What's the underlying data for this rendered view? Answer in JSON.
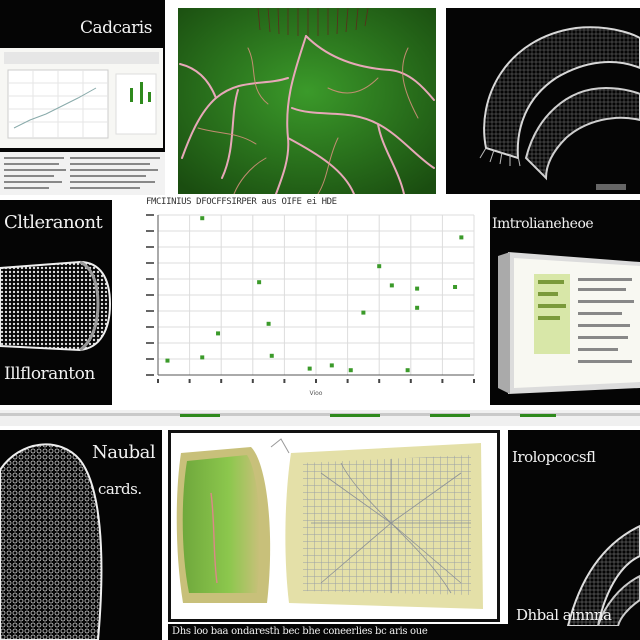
{
  "panels": {
    "top_left": {
      "title": "Cadcaris"
    },
    "mid_left": {
      "title": "Cltleranont",
      "caption": "Illfloranton"
    },
    "mid_chart": {
      "title": "FMCIINIUS DFOCFFSIRPER aus OIFE ei HDE"
    },
    "mid_right": {
      "title": "Imtrolianeheoe"
    },
    "bottom_left": {
      "title": "Naubal",
      "subtitle": "cards."
    },
    "bottom_right": {
      "title": "Irolopcocsfl",
      "caption": "Dhbal ainnna"
    },
    "bottom_strip": {
      "text": "Dhs loo baa ondaresth bec bhe coneerlies bc aris oue"
    }
  },
  "colors": {
    "accent_green": "#2f8a1d",
    "leaf_green": "#3b9a2a",
    "vein_pink": "#e7a8b8",
    "dark_bg": "#050505"
  },
  "icons": [
    "leaf-vein-image",
    "nematode-mesh-image",
    "tissue-section-image",
    "lattice-sheet-image"
  ],
  "chart_data": {
    "type": "scatter",
    "title": "FMCIINIUS DFOCFFSIRPER aus OIFE ei HDE",
    "xlabel": "Vioo",
    "ylabel": "",
    "xlim": [
      0,
      10
    ],
    "ylim": [
      0,
      10
    ],
    "grid": true,
    "points": [
      {
        "x": 0.3,
        "y": 0.9
      },
      {
        "x": 1.4,
        "y": 1.1
      },
      {
        "x": 3.6,
        "y": 1.2
      },
      {
        "x": 1.9,
        "y": 2.6
      },
      {
        "x": 3.5,
        "y": 3.2
      },
      {
        "x": 3.2,
        "y": 5.8
      },
      {
        "x": 6.5,
        "y": 3.9
      },
      {
        "x": 8.2,
        "y": 4.2
      },
      {
        "x": 8.2,
        "y": 5.4
      },
      {
        "x": 9.4,
        "y": 5.5
      },
      {
        "x": 7.0,
        "y": 6.8
      },
      {
        "x": 7.4,
        "y": 5.6
      },
      {
        "x": 9.6,
        "y": 8.6
      },
      {
        "x": 1.4,
        "y": 9.8
      },
      {
        "x": 5.5,
        "y": 0.6
      },
      {
        "x": 7.9,
        "y": 0.3
      },
      {
        "x": 4.8,
        "y": 0.4
      },
      {
        "x": 6.1,
        "y": 0.3
      }
    ]
  }
}
